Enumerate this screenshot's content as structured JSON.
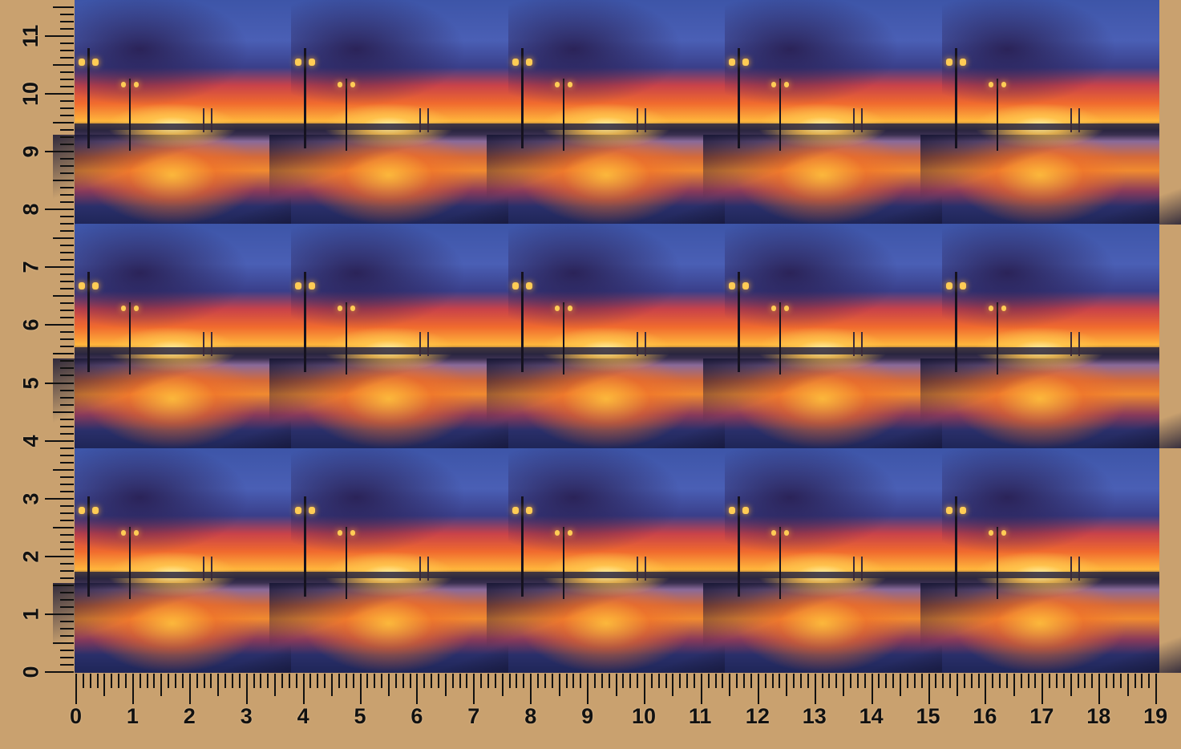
{
  "pattern": {
    "rows": 3,
    "columns": 5,
    "motif": "watercolor sunset waterfront with street lamps and bridge"
  },
  "ruler": {
    "unit": "inch",
    "horizontal_labels": [
      "0",
      "1",
      "2",
      "3",
      "4",
      "5",
      "6",
      "7",
      "8",
      "9",
      "10",
      "11",
      "12",
      "13",
      "14",
      "15",
      "16",
      "17",
      "18",
      "19"
    ],
    "vertical_labels": [
      "0",
      "1",
      "2",
      "3",
      "4",
      "5",
      "6",
      "7",
      "8",
      "9",
      "10",
      "11"
    ],
    "background_color": "#c9a16f",
    "tick_color": "#111111"
  }
}
